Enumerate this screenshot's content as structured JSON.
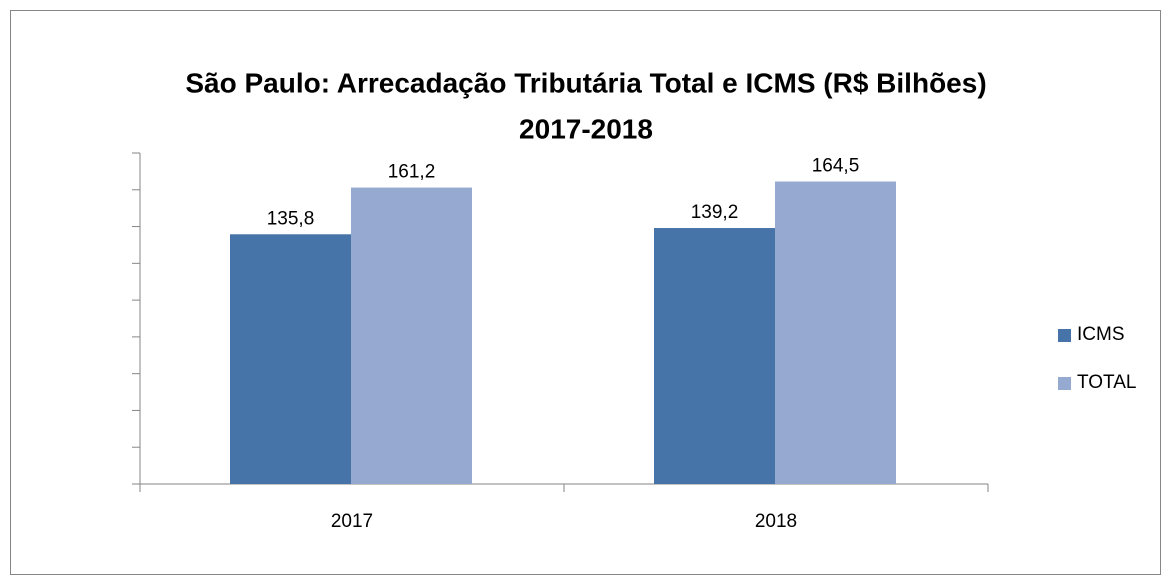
{
  "chart_data": {
    "type": "bar",
    "title": "São Paulo: Arrecadação Tributária Total e ICMS (R$ Bilhões)",
    "subtitle": "2017-2018",
    "categories": [
      "2017",
      "2018"
    ],
    "series": [
      {
        "name": "ICMS",
        "color": "#4673a8",
        "values": [
          135.8,
          139.2
        ],
        "value_labels": [
          "135,8",
          "139,2"
        ]
      },
      {
        "name": "TOTAL",
        "color": "#95a9d1",
        "values": [
          161.2,
          164.5
        ],
        "value_labels": [
          "161,2",
          "164,5"
        ]
      }
    ],
    "ylim": [
      0,
      180
    ],
    "yticks": [
      0,
      20,
      40,
      60,
      80,
      100,
      120,
      140,
      160,
      180
    ],
    "legend": "right"
  }
}
